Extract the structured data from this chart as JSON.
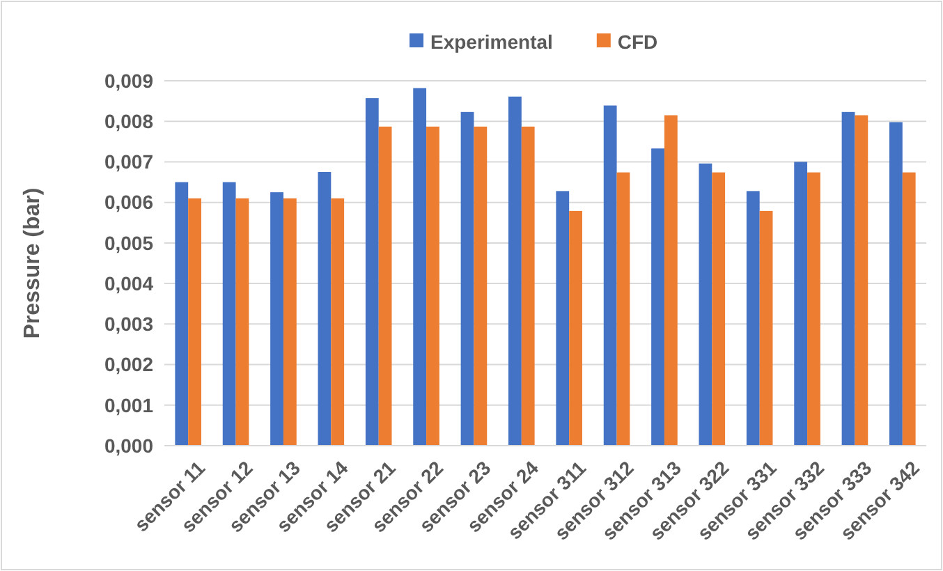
{
  "chart_data": {
    "type": "bar",
    "ylabel": "Pressure (bar)",
    "categories": [
      "sensor 11",
      "sensor 12",
      "sensor 13",
      "sensor 14",
      "sensor 21",
      "sensor 22",
      "sensor 23",
      "sensor 24",
      "sensor 311",
      "sensor 312",
      "sensor 313",
      "sensor 322",
      "sensor 331",
      "sensor 332",
      "sensor 333",
      "sensor 342"
    ],
    "series": [
      {
        "name": "Experimental",
        "color": "#4472c4",
        "values": [
          0.0065,
          0.0065,
          0.00625,
          0.00675,
          0.00857,
          0.00882,
          0.00823,
          0.00861,
          0.00628,
          0.00839,
          0.00733,
          0.00696,
          0.00628,
          0.007,
          0.00823,
          0.00798
        ]
      },
      {
        "name": "CFD",
        "color": "#ed7d31",
        "values": [
          0.0061,
          0.0061,
          0.0061,
          0.0061,
          0.00787,
          0.00787,
          0.00787,
          0.00787,
          0.00579,
          0.00674,
          0.00815,
          0.00674,
          0.00579,
          0.00674,
          0.00815,
          0.00674
        ]
      }
    ],
    "ylim": [
      0,
      0.009
    ],
    "yticks": [
      {
        "value": 0,
        "label": "0,000"
      },
      {
        "value": 0.001,
        "label": "0,001"
      },
      {
        "value": 0.002,
        "label": "0,002"
      },
      {
        "value": 0.003,
        "label": "0,003"
      },
      {
        "value": 0.004,
        "label": "0,004"
      },
      {
        "value": 0.005,
        "label": "0,005"
      },
      {
        "value": 0.006,
        "label": "0,006"
      },
      {
        "value": 0.007,
        "label": "0,007"
      },
      {
        "value": 0.008,
        "label": "0,008"
      },
      {
        "value": 0.009,
        "label": "0,009"
      }
    ],
    "grid": "y",
    "legend": "top"
  }
}
